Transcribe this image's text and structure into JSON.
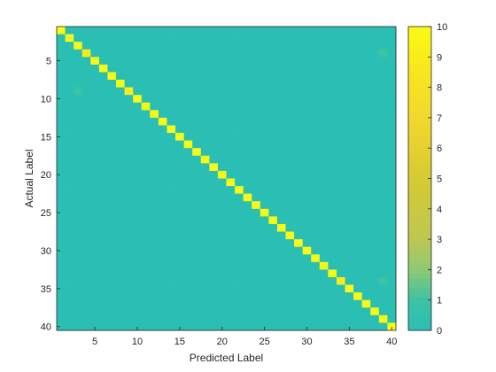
{
  "chart_data": {
    "type": "heatmap",
    "xlabel": "Predicted Label",
    "ylabel": "Actual Label",
    "x_range": [
      1,
      40
    ],
    "y_range": [
      1,
      40
    ],
    "x_ticks": [
      "5",
      "10",
      "15",
      "20",
      "25",
      "30",
      "35",
      "40"
    ],
    "y_ticks": [
      "5",
      "10",
      "15",
      "20",
      "25",
      "30",
      "35",
      "40"
    ],
    "colorbar": {
      "min": 0,
      "max": 10,
      "ticks": [
        "0",
        "1",
        "2",
        "3",
        "4",
        "5",
        "6",
        "7",
        "8",
        "9",
        "10"
      ]
    },
    "diagonal_value": 10,
    "background_value": 0,
    "off_diagonal_cells": [
      {
        "actual": 4,
        "predicted": 39,
        "value": 1
      },
      {
        "actual": 9,
        "predicted": 3,
        "value": 1
      },
      {
        "actual": 34,
        "predicted": 39,
        "value": 1
      }
    ],
    "diagonal_exceptions": [
      {
        "actual": 4,
        "predicted": 4,
        "value": 9
      },
      {
        "actual": 9,
        "predicted": 9,
        "value": 9
      },
      {
        "actual": 34,
        "predicted": 34,
        "value": 9
      }
    ],
    "colormap": "parula",
    "grid": false
  }
}
